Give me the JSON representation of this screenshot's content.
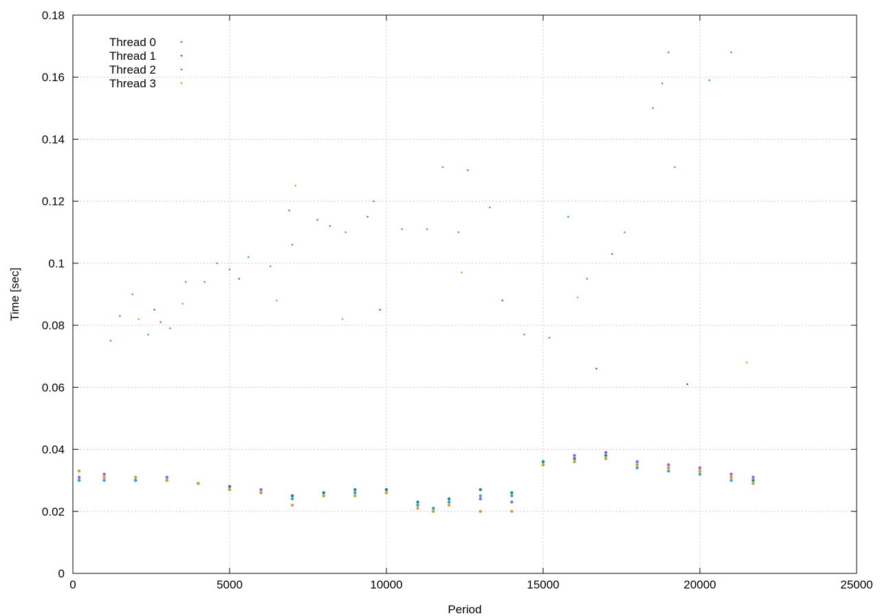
{
  "chart_data": {
    "type": "scatter",
    "title": "",
    "xlabel": "Period",
    "ylabel": "Time [sec]",
    "xlim": [
      0,
      25000
    ],
    "ylim": [
      0,
      0.18
    ],
    "xticks": [
      0,
      5000,
      10000,
      15000,
      20000,
      25000
    ],
    "yticks": [
      0,
      0.02,
      0.04,
      0.06,
      0.08,
      0.1,
      0.12,
      0.14,
      0.16,
      0.18
    ],
    "xtick_labels": [
      "0",
      "5000",
      "10000",
      "15000",
      "20000",
      "25000"
    ],
    "ytick_labels": [
      "0",
      "0.02",
      "0.04",
      "0.06",
      "0.08",
      "0.1",
      "0.12",
      "0.14",
      "0.16",
      "0.18"
    ],
    "grid": true,
    "legend_position": "top-left",
    "series": [
      {
        "name": "Thread 0",
        "color": "#9a5fd8",
        "marker": "dot",
        "x": [
          200,
          1000,
          2000,
          3000,
          4000,
          5000,
          6000,
          7000,
          8000,
          9000,
          10000,
          11000,
          11500,
          12000,
          13000,
          14000,
          15000,
          16000,
          17000,
          18000,
          19000,
          20000,
          21000,
          21700
        ],
        "y": [
          0.031,
          0.032,
          0.03,
          0.031,
          0.029,
          0.028,
          0.027,
          0.025,
          0.026,
          0.026,
          0.027,
          0.022,
          0.02,
          0.023,
          0.024,
          0.023,
          0.036,
          0.038,
          0.039,
          0.036,
          0.035,
          0.034,
          0.032,
          0.031
        ]
      },
      {
        "name": "Thread 1",
        "color": "#1a8a82",
        "marker": "dot",
        "x": [
          200,
          1000,
          2000,
          3000,
          4000,
          5000,
          6000,
          7000,
          8000,
          9000,
          10000,
          11000,
          11500,
          12000,
          13000,
          14000,
          15000,
          16000,
          17000,
          18000,
          19000,
          20000,
          21000,
          21700
        ],
        "y": [
          0.03,
          0.031,
          0.03,
          0.03,
          0.029,
          0.028,
          0.026,
          0.025,
          0.026,
          0.027,
          0.027,
          0.023,
          0.021,
          0.024,
          0.027,
          0.026,
          0.036,
          0.037,
          0.038,
          0.035,
          0.034,
          0.033,
          0.031,
          0.03
        ]
      },
      {
        "name": "Thread 2",
        "color": "#3a9ed8",
        "marker": "dot",
        "x": [
          200,
          1000,
          2000,
          3000,
          4000,
          5000,
          6000,
          7000,
          8000,
          9000,
          10000,
          11000,
          11500,
          12000,
          13000,
          14000,
          15000,
          16000,
          17000,
          18000,
          19000,
          20000,
          21000,
          21700
        ],
        "y": [
          0.03,
          0.03,
          0.03,
          0.03,
          0.029,
          0.027,
          0.026,
          0.024,
          0.025,
          0.026,
          0.026,
          0.022,
          0.021,
          0.023,
          0.025,
          0.025,
          0.035,
          0.036,
          0.037,
          0.034,
          0.033,
          0.032,
          0.03,
          0.029
        ]
      },
      {
        "name": "Thread 3",
        "color": "#d4a030",
        "marker": "dot",
        "x": [
          200,
          1000,
          2000,
          3000,
          4000,
          5000,
          6000,
          7000,
          8000,
          9000,
          10000,
          11000,
          11500,
          12000,
          13000,
          14000,
          15000,
          16000,
          17000,
          18000,
          19000,
          20000,
          21000,
          21700
        ],
        "y": [
          0.033,
          0.031,
          0.031,
          0.03,
          0.029,
          0.027,
          0.026,
          0.022,
          0.025,
          0.025,
          0.026,
          0.021,
          0.02,
          0.022,
          0.02,
          0.02,
          0.035,
          0.036,
          0.037,
          0.035,
          0.034,
          0.033,
          0.031,
          0.029
        ]
      }
    ],
    "outliers": [
      {
        "series": "Thread 2",
        "x": [
          1200,
          1900,
          2400,
          3100,
          3600,
          4200,
          5000,
          5600,
          6300,
          7000,
          7800,
          8700,
          9600,
          10500,
          11300,
          12300,
          13300,
          14400,
          15800,
          16400,
          17600,
          18500,
          19200,
          20300,
          21000
        ],
        "y": [
          0.075,
          0.09,
          0.077,
          0.079,
          0.094,
          0.094,
          0.098,
          0.102,
          0.099,
          0.106,
          0.114,
          0.11,
          0.12,
          0.111,
          0.111,
          0.11,
          0.118,
          0.077,
          0.115,
          0.095,
          0.11,
          0.15,
          0.131,
          0.159,
          0.168
        ]
      },
      {
        "series": "Thread 0",
        "x": [
          1500,
          2800,
          4600,
          6900,
          8200,
          9400,
          11800,
          12600,
          15200,
          17200,
          18800,
          19000
        ],
        "y": [
          0.083,
          0.081,
          0.1,
          0.117,
          0.112,
          0.115,
          0.131,
          0.13,
          0.076,
          0.103,
          0.158,
          0.168
        ]
      },
      {
        "series": "Thread 3",
        "x": [
          2100,
          3500,
          6500,
          7100,
          8600,
          12400,
          16100,
          21500
        ],
        "y": [
          0.082,
          0.087,
          0.088,
          0.125,
          0.082,
          0.097,
          0.089,
          0.068
        ]
      },
      {
        "series": "Thread 1",
        "x": [
          2600,
          5300,
          9800,
          13700,
          16700,
          19600
        ],
        "y": [
          0.085,
          0.095,
          0.085,
          0.088,
          0.066,
          0.061
        ]
      }
    ]
  }
}
